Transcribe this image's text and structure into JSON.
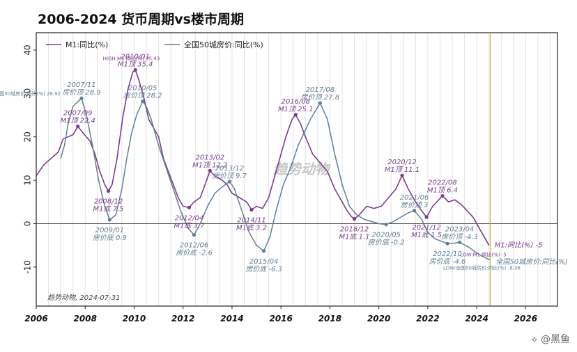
{
  "title": "2006-2024 货币周期vs楼市周期",
  "watermark": "趋势动物",
  "signature": "趋势动物, 2024-07-31",
  "corner_mark": "⟡ @黑鱼",
  "chart_data": {
    "type": "line",
    "xlim": [
      2006.0,
      2027.3
    ],
    "ylim": [
      -19,
      44
    ],
    "x_ticks": [
      "2006",
      "2008",
      "2010",
      "2012",
      "2014",
      "2016",
      "2018",
      "2020",
      "2022",
      "2024",
      "2026"
    ],
    "y_ticks": [
      "40",
      "30",
      "20",
      "10",
      "0",
      "-10"
    ],
    "grid": "vertical",
    "zero_line": 0,
    "vline": 2024.55,
    "legend": {
      "position": "top-left"
    },
    "series": [
      {
        "name": "M1:同比(%)",
        "color": "#7b3b91",
        "points": [
          [
            2006.0,
            11
          ],
          [
            2006.3,
            13.5
          ],
          [
            2006.6,
            15
          ],
          [
            2006.9,
            16.5
          ],
          [
            2007.1,
            19.5
          ],
          [
            2007.3,
            20
          ],
          [
            2007.5,
            20.5
          ],
          [
            2007.7,
            22.4
          ],
          [
            2007.9,
            21
          ],
          [
            2008.2,
            19
          ],
          [
            2008.4,
            16
          ],
          [
            2008.6,
            12
          ],
          [
            2008.8,
            9
          ],
          [
            2008.95,
            7.5
          ],
          [
            2009.1,
            9
          ],
          [
            2009.3,
            15
          ],
          [
            2009.55,
            25
          ],
          [
            2009.75,
            31
          ],
          [
            2009.95,
            35
          ],
          [
            2010.05,
            35.4
          ],
          [
            2010.2,
            33
          ],
          [
            2010.4,
            29
          ],
          [
            2010.6,
            24
          ],
          [
            2010.8,
            22
          ],
          [
            2011.0,
            20
          ],
          [
            2011.2,
            15
          ],
          [
            2011.4,
            12
          ],
          [
            2011.6,
            9
          ],
          [
            2011.8,
            6
          ],
          [
            2012.0,
            4
          ],
          [
            2012.25,
            3.7
          ],
          [
            2012.45,
            5
          ],
          [
            2012.7,
            6
          ],
          [
            2012.9,
            9
          ],
          [
            2013.1,
            12.2
          ],
          [
            2013.3,
            11
          ],
          [
            2013.6,
            10
          ],
          [
            2013.8,
            9
          ],
          [
            2014.0,
            7
          ],
          [
            2014.3,
            6
          ],
          [
            2014.6,
            5
          ],
          [
            2014.8,
            3.2
          ],
          [
            2015.0,
            4
          ],
          [
            2015.25,
            3.5
          ],
          [
            2015.5,
            6
          ],
          [
            2015.75,
            11
          ],
          [
            2016.0,
            16
          ],
          [
            2016.2,
            20
          ],
          [
            2016.45,
            24
          ],
          [
            2016.6,
            25.1
          ],
          [
            2016.8,
            23
          ],
          [
            2017.0,
            20
          ],
          [
            2017.3,
            16
          ],
          [
            2017.6,
            14
          ],
          [
            2017.9,
            12
          ],
          [
            2018.2,
            8
          ],
          [
            2018.5,
            5
          ],
          [
            2018.7,
            3
          ],
          [
            2018.9,
            1.5
          ],
          [
            2019.0,
            1.1
          ],
          [
            2019.2,
            2
          ],
          [
            2019.5,
            4
          ],
          [
            2019.8,
            3.5
          ],
          [
            2020.1,
            4
          ],
          [
            2020.4,
            6
          ],
          [
            2020.7,
            8
          ],
          [
            2020.95,
            11.1
          ],
          [
            2021.2,
            8
          ],
          [
            2021.5,
            5
          ],
          [
            2021.75,
            3
          ],
          [
            2021.95,
            1.5
          ],
          [
            2022.2,
            4
          ],
          [
            2022.45,
            5.5
          ],
          [
            2022.6,
            6.4
          ],
          [
            2022.85,
            5
          ],
          [
            2023.1,
            5.5
          ],
          [
            2023.35,
            4.5
          ],
          [
            2023.6,
            3
          ],
          [
            2023.85,
            1.5
          ],
          [
            2024.1,
            -1
          ],
          [
            2024.35,
            -3.5
          ],
          [
            2024.5,
            -5
          ]
        ]
      },
      {
        "name": "全国50城房价:同比(%)",
        "color": "#5f7f96",
        "points": [
          [
            2007.0,
            15
          ],
          [
            2007.15,
            18
          ],
          [
            2007.3,
            23
          ],
          [
            2007.5,
            27
          ],
          [
            2007.85,
            28.9
          ],
          [
            2008.05,
            25
          ],
          [
            2008.3,
            18
          ],
          [
            2008.55,
            10
          ],
          [
            2008.8,
            4
          ],
          [
            2009.0,
            0.9
          ],
          [
            2009.25,
            2
          ],
          [
            2009.5,
            8
          ],
          [
            2009.7,
            15
          ],
          [
            2009.9,
            21
          ],
          [
            2010.1,
            25
          ],
          [
            2010.35,
            28.2
          ],
          [
            2010.5,
            27
          ],
          [
            2010.7,
            24
          ],
          [
            2011.0,
            18
          ],
          [
            2011.3,
            13
          ],
          [
            2011.6,
            8
          ],
          [
            2011.9,
            3
          ],
          [
            2012.2,
            -1
          ],
          [
            2012.45,
            -2.6
          ],
          [
            2012.7,
            0
          ],
          [
            2013.0,
            4
          ],
          [
            2013.3,
            7
          ],
          [
            2013.6,
            8.5
          ],
          [
            2013.9,
            9.7
          ],
          [
            2014.1,
            8
          ],
          [
            2014.4,
            3
          ],
          [
            2014.7,
            -2
          ],
          [
            2015.0,
            -5
          ],
          [
            2015.3,
            -6.3
          ],
          [
            2015.55,
            -3
          ],
          [
            2015.8,
            3
          ],
          [
            2016.1,
            9
          ],
          [
            2016.4,
            13
          ],
          [
            2016.7,
            18
          ],
          [
            2016.95,
            21
          ],
          [
            2017.2,
            24
          ],
          [
            2017.6,
            27.8
          ],
          [
            2017.9,
            24
          ],
          [
            2018.2,
            16
          ],
          [
            2018.5,
            9
          ],
          [
            2018.8,
            4
          ],
          [
            2019.1,
            2
          ],
          [
            2019.4,
            1
          ],
          [
            2019.7,
            0.5
          ],
          [
            2020.0,
            0
          ],
          [
            2020.3,
            -0.2
          ],
          [
            2020.6,
            0.5
          ],
          [
            2020.9,
            1.5
          ],
          [
            2021.2,
            2.5
          ],
          [
            2021.45,
            3
          ],
          [
            2021.75,
            1
          ],
          [
            2022.0,
            -2
          ],
          [
            2022.3,
            -3.5
          ],
          [
            2022.8,
            -4.6
          ],
          [
            2023.1,
            -4.5
          ],
          [
            2023.3,
            -4.3
          ],
          [
            2023.7,
            -5.5
          ],
          [
            2024.0,
            -6.8
          ],
          [
            2024.4,
            -8
          ],
          [
            2024.55,
            -8.36
          ]
        ]
      }
    ],
    "annotations": [
      {
        "series": 0,
        "x": 2007.7,
        "y": 22.4,
        "lines": [
          "2007/09",
          "M1顶 22.4"
        ],
        "pos": "above"
      },
      {
        "series": 0,
        "x": 2008.95,
        "y": 7.5,
        "lines": [
          "2008/12",
          "M1底 7.5"
        ],
        "pos": "below"
      },
      {
        "series": 0,
        "x": 2010.05,
        "y": 35.4,
        "lines": [
          "2010/01",
          "M1顶 35.4"
        ],
        "pos": "above"
      },
      {
        "series": 0,
        "x": 2012.25,
        "y": 3.7,
        "lines": [
          "2012/04",
          "M1底 3.7"
        ],
        "pos": "below"
      },
      {
        "series": 0,
        "x": 2013.1,
        "y": 12.2,
        "lines": [
          "2013/02",
          "M1顶 12.2"
        ],
        "pos": "above"
      },
      {
        "series": 0,
        "x": 2014.8,
        "y": 3.2,
        "lines": [
          "2014/11",
          "M1底 3.2"
        ],
        "pos": "below"
      },
      {
        "series": 0,
        "x": 2016.6,
        "y": 25.1,
        "lines": [
          "2016/08",
          "M1顶 25.1"
        ],
        "pos": "above"
      },
      {
        "series": 0,
        "x": 2019.0,
        "y": 1.1,
        "lines": [
          "2018/12",
          "M1底 1.1"
        ],
        "pos": "below"
      },
      {
        "series": 0,
        "x": 2020.95,
        "y": 11.1,
        "lines": [
          "2020/12",
          "M1顶 11.1"
        ],
        "pos": "above"
      },
      {
        "series": 0,
        "x": 2021.95,
        "y": 1.5,
        "lines": [
          "2021/12",
          "M1底 1.5"
        ],
        "pos": "below"
      },
      {
        "series": 0,
        "x": 2022.6,
        "y": 6.4,
        "lines": [
          "2022/08",
          "M1顶 6.4"
        ],
        "pos": "above"
      },
      {
        "series": 1,
        "x": 2007.85,
        "y": 28.9,
        "lines": [
          "2007/11",
          "房价顶 28.9"
        ],
        "pos": "above"
      },
      {
        "series": 1,
        "x": 2009.0,
        "y": 0.9,
        "lines": [
          "2009/01",
          "房价底 0.9"
        ],
        "pos": "below"
      },
      {
        "series": 1,
        "x": 2010.35,
        "y": 28.2,
        "lines": [
          "2010/05",
          "房价顶 28.2"
        ],
        "pos": "above"
      },
      {
        "series": 1,
        "x": 2012.45,
        "y": -2.6,
        "lines": [
          "2012/06",
          "房价底 -2.6"
        ],
        "pos": "below"
      },
      {
        "series": 1,
        "x": 2013.9,
        "y": 9.7,
        "lines": [
          "2013/12",
          "房价顶 9.7"
        ],
        "pos": "above"
      },
      {
        "series": 1,
        "x": 2015.3,
        "y": -6.3,
        "lines": [
          "2015/04",
          "房价底 -6.3"
        ],
        "pos": "below"
      },
      {
        "series": 1,
        "x": 2017.6,
        "y": 27.8,
        "lines": [
          "2017/08",
          "房价顶 27.8"
        ],
        "pos": "above"
      },
      {
        "series": 1,
        "x": 2020.3,
        "y": -0.2,
        "lines": [
          "2020/05",
          "房价底 -0.2"
        ],
        "pos": "below"
      },
      {
        "series": 1,
        "x": 2021.45,
        "y": 3,
        "lines": [
          "2021/06",
          "房价顶 3"
        ],
        "pos": "above"
      },
      {
        "series": 1,
        "x": 2022.8,
        "y": -4.6,
        "lines": [
          "2022/10",
          "房价底 -4.6"
        ],
        "pos": "below"
      },
      {
        "series": 1,
        "x": 2023.3,
        "y": -4.3,
        "lines": [
          "2023/04",
          "房价顶 -4.3"
        ],
        "pos": "above"
      }
    ],
    "extreme_labels": [
      {
        "series": 0,
        "x": 2010.05,
        "y": 35.4,
        "text": "HIGH:M1:同比(%) 35.43"
      },
      {
        "series": 1,
        "x": 2007.85,
        "y": 28.9,
        "text": "HIGH:全国50城房价:同比(%) 28.92"
      },
      {
        "series": 0,
        "x": 2024.5,
        "y": -5,
        "text": "LOW:M1:同比(%) -5"
      },
      {
        "series": 1,
        "x": 2024.55,
        "y": -8.36,
        "text": "LOW:全国50城房价:同比(%) -8.36"
      }
    ],
    "end_labels": [
      {
        "series": 0,
        "x": 2024.5,
        "y": -5,
        "text": "M1:同比(%) -5"
      },
      {
        "series": 1,
        "x": 2024.55,
        "y": -8.36,
        "text": "全国50城房价:同比(%)"
      }
    ]
  }
}
